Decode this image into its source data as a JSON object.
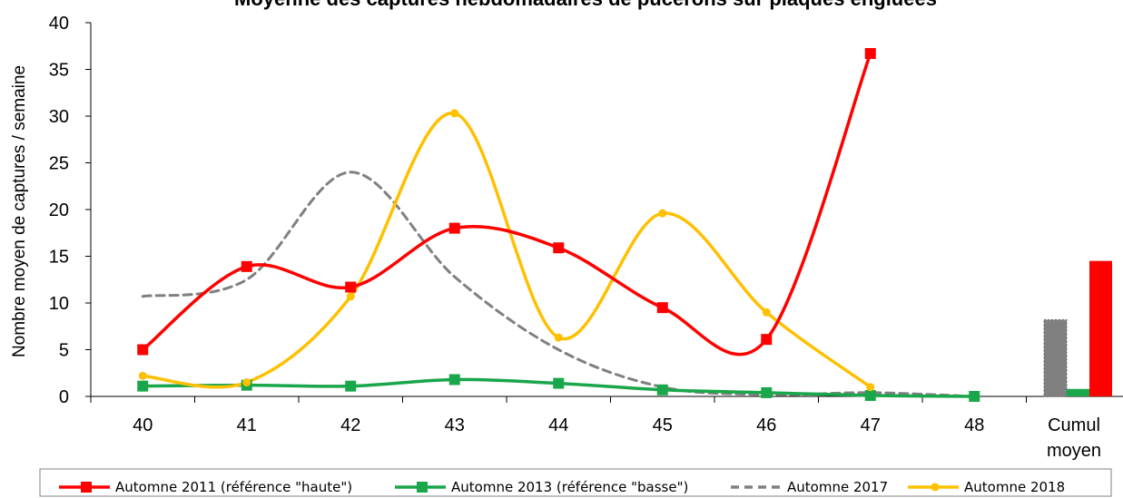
{
  "chart_data": {
    "type": "line",
    "title": "Moyenne des captures hebdomadaires de pucerons sur plaques engluées",
    "ylabel": "Nombre moyen de captures / semaine",
    "xlabel": "",
    "ylim": [
      0,
      40
    ],
    "yticks": [
      0,
      5,
      10,
      15,
      20,
      25,
      30,
      35,
      40
    ],
    "categories": [
      "40",
      "41",
      "42",
      "43",
      "44",
      "45",
      "46",
      "47",
      "48"
    ],
    "cumul_label_line1": "Cumul",
    "cumul_label_line2": "moyen",
    "grid": false,
    "legend_position": "bottom",
    "series": [
      {
        "name": "Automne 2011 (référence \"haute\")",
        "color": "#ff0000",
        "marker": "square",
        "dashed": false,
        "x": [
          40,
          41,
          42,
          43,
          44,
          45,
          46,
          47
        ],
        "values": [
          5.0,
          13.9,
          11.7,
          18.0,
          15.9,
          9.5,
          6.1,
          36.7
        ],
        "cumul": 14.5
      },
      {
        "name": "Automne 2013 (référence \"basse\")",
        "color": "#1aa64a",
        "marker": "square",
        "dashed": false,
        "x": [
          40,
          41,
          42,
          43,
          44,
          45,
          46,
          47,
          48
        ],
        "values": [
          1.1,
          1.2,
          1.1,
          1.8,
          1.4,
          0.7,
          0.4,
          0.1,
          0.0
        ],
        "cumul": 0.8
      },
      {
        "name": "Automne 2017",
        "color": "#808080",
        "marker": "none",
        "dashed": true,
        "x": [
          40,
          41,
          42,
          43,
          44,
          45,
          46,
          47,
          48
        ],
        "values": [
          10.7,
          12.5,
          24.0,
          12.8,
          5.0,
          1.0,
          0.2,
          0.4,
          0.0
        ],
        "cumul": 8.2
      },
      {
        "name": "Automne 2018",
        "color": "#ffc000",
        "marker": "circle",
        "dashed": false,
        "x": [
          40,
          41,
          42,
          43,
          44,
          45,
          46,
          47
        ],
        "values": [
          2.2,
          1.5,
          10.7,
          30.3,
          6.3,
          19.6,
          9.0,
          1.0
        ],
        "cumul": null
      }
    ]
  }
}
